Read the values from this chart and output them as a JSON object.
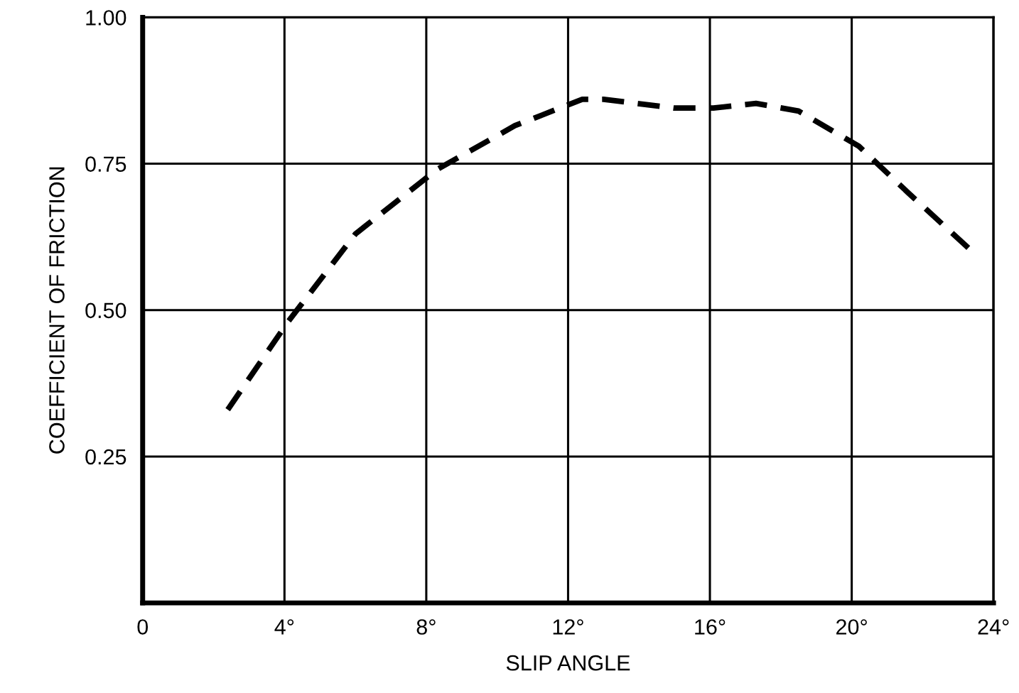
{
  "chart_data": {
    "type": "line",
    "xlabel": "SLIP ANGLE",
    "ylabel": "COEFFICIENT OF FRICTION",
    "xlim": [
      0,
      24
    ],
    "ylim": [
      0,
      1
    ],
    "xticks": [
      0,
      {
        "value": 4,
        "label": "4°"
      },
      {
        "value": 8,
        "label": "8°"
      },
      {
        "value": 12,
        "label": "12°"
      },
      {
        "value": 16,
        "label": "16°"
      },
      {
        "value": 20,
        "label": "20°"
      },
      {
        "value": 24,
        "label": "24°"
      }
    ],
    "yticks": [
      {
        "value": 0.25,
        "label": "0.25"
      },
      {
        "value": 0.5,
        "label": "0.50"
      },
      {
        "value": 0.75,
        "label": "0.75"
      },
      {
        "value": 1,
        "label": "1.00"
      }
    ],
    "grid": true,
    "line_style": "dashed",
    "marker": "none",
    "series": [
      {
        "color": "#000000",
        "x": [
          2.4,
          4.1,
          6.0,
          8.3,
          10.5,
          12.4,
          13.0,
          15.0,
          16.1,
          17.3,
          18.5,
          20.2,
          21.6,
          23.4
        ],
        "values": [
          0.33,
          0.48,
          0.63,
          0.74,
          0.815,
          0.86,
          0.86,
          0.845,
          0.845,
          0.853,
          0.84,
          0.78,
          0.7,
          0.6
        ]
      }
    ]
  }
}
